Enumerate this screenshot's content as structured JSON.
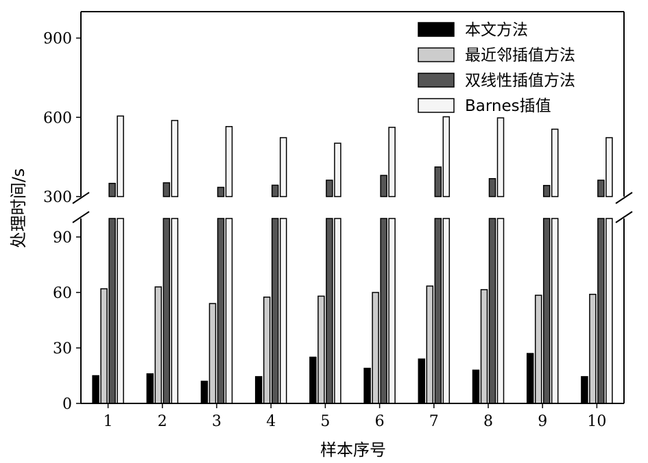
{
  "chart_data": {
    "type": "bar",
    "xlabel": "样本序号",
    "ylabel": "处理时间/s",
    "categories": [
      "1",
      "2",
      "3",
      "4",
      "5",
      "6",
      "7",
      "8",
      "9",
      "10"
    ],
    "series": [
      {
        "name": "本文方法",
        "color": "#000000",
        "values": [
          15,
          16,
          12,
          14.5,
          25,
          19,
          24,
          18,
          27,
          14.5
        ]
      },
      {
        "name": "最近邻插值方法",
        "color": "#cccccc",
        "values": [
          62,
          63,
          54,
          57.5,
          58,
          60,
          63.5,
          61.5,
          58.5,
          59
        ]
      },
      {
        "name": "双线性插值方法",
        "color": "#555555",
        "values": [
          350,
          352,
          335,
          343,
          362,
          380,
          412,
          368,
          342,
          362
        ]
      },
      {
        "name": "Barnes插值",
        "color": "#f5f5f5",
        "values": [
          605,
          588,
          565,
          523,
          502,
          562,
          602,
          598,
          555,
          523
        ]
      }
    ],
    "axis_break": {
      "lower": [
        0,
        100
      ],
      "upper": [
        300,
        1000
      ]
    },
    "lower_ticks": [
      "0",
      "30",
      "60",
      "90"
    ],
    "upper_ticks": [
      "300",
      "600",
      "900"
    ],
    "legend_position": "top-right",
    "grid": false
  }
}
